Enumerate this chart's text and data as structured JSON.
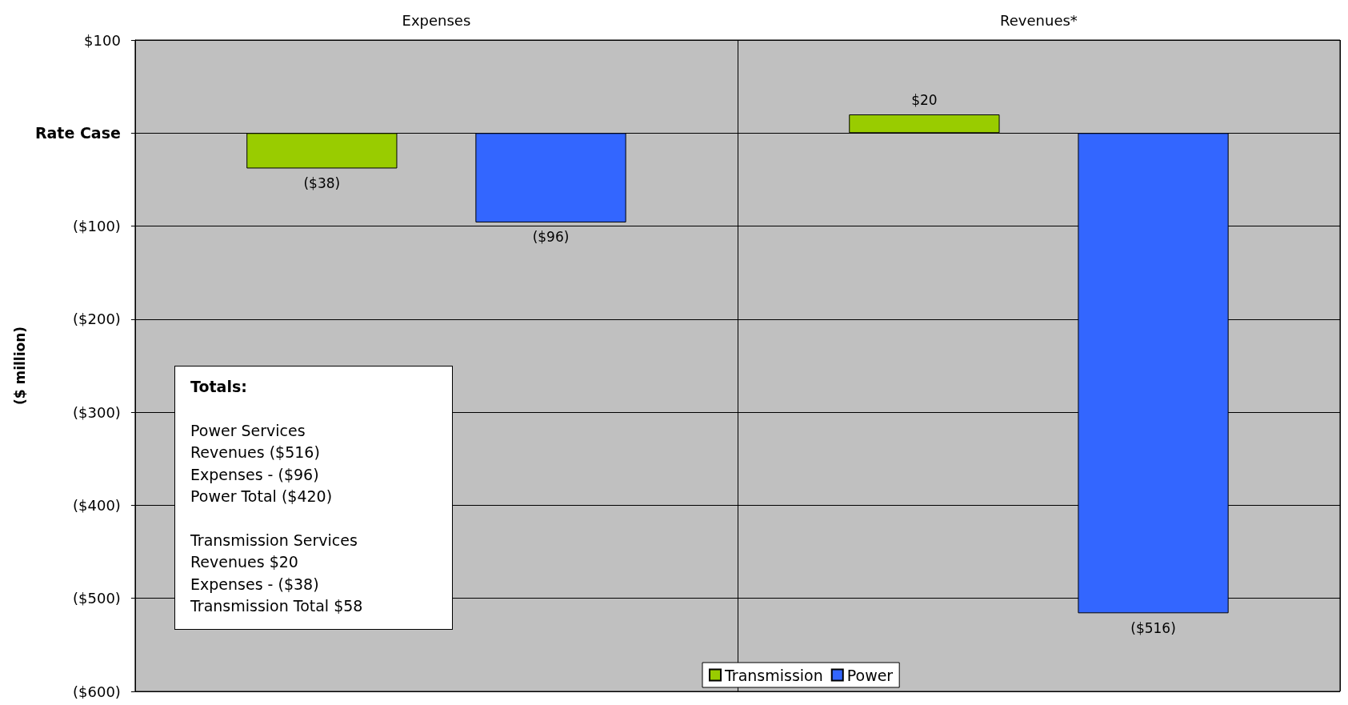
{
  "chart_data": {
    "type": "bar",
    "categories": [
      "Expenses",
      "Revenues*"
    ],
    "ylabel": "($ million)",
    "series": [
      {
        "name": "Transmission",
        "color": "#99cc00",
        "values": [
          -38,
          20
        ],
        "value_labels": [
          "($38)",
          "$20"
        ]
      },
      {
        "name": "Power",
        "color": "#3366ff",
        "values": [
          -96,
          -516
        ],
        "value_labels": [
          "($96)",
          "($516)"
        ]
      }
    ],
    "ylim": [
      -600,
      100
    ],
    "yticks": [
      {
        "value": 100,
        "label": "$100"
      },
      {
        "value": 0,
        "label": "Rate Case"
      },
      {
        "value": -100,
        "label": "($100)"
      },
      {
        "value": -200,
        "label": "($200)"
      },
      {
        "value": -300,
        "label": "($300)"
      },
      {
        "value": -400,
        "label": "($400)"
      },
      {
        "value": -500,
        "label": "($500)"
      },
      {
        "value": -600,
        "label": "($600)"
      }
    ],
    "grid": true,
    "legend": "bottom",
    "annotations": [
      "Totals:",
      "Power Services\nRevenues ($516)\nExpenses - ($96)\nPower Total ($420)",
      "Transmission Services\nRevenues $20\nExpenses - ($38)\nTransmission Total $58"
    ]
  }
}
